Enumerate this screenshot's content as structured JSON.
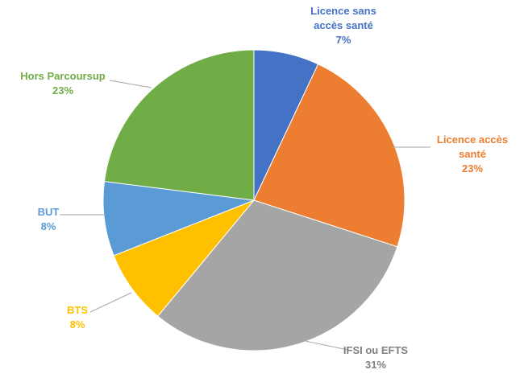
{
  "chart_data": {
    "type": "pie",
    "title": "",
    "legend": "none",
    "series": [
      {
        "values": [
          7,
          23,
          31,
          8,
          8,
          23
        ],
        "categories": [
          "Licence sans accès santé",
          "Licence accès santé",
          "IFSI ou EFTS",
          "BTS",
          "BUT",
          "Hors Parcoursup"
        ]
      }
    ],
    "slices": [
      {
        "label_lines": [
          "Licence sans",
          "accès santé"
        ],
        "value": 7,
        "percent_label": "7%",
        "color": "#4472C4",
        "label_color": "#4472C4"
      },
      {
        "label_lines": [
          "Licence accès",
          "santé"
        ],
        "value": 23,
        "percent_label": "23%",
        "color": "#ED7D31",
        "label_color": "#ED7D31"
      },
      {
        "label_lines": [
          "IFSI ou EFTS"
        ],
        "value": 31,
        "percent_label": "31%",
        "color": "#A5A5A5",
        "label_color": "#7F7F7F"
      },
      {
        "label_lines": [
          "BTS"
        ],
        "value": 8,
        "percent_label": "8%",
        "color": "#FFC000",
        "label_color": "#FFC000"
      },
      {
        "label_lines": [
          "BUT"
        ],
        "value": 8,
        "percent_label": "8%",
        "color": "#5B9BD5",
        "label_color": "#5B9BD5"
      },
      {
        "label_lines": [
          "Hors Parcoursup"
        ],
        "value": 23,
        "percent_label": "23%",
        "color": "#70AD47",
        "label_color": "#70AD47"
      }
    ],
    "start_angle_deg": 0,
    "direction": "clockwise",
    "leader_lines": true,
    "leader_color": "#A6A6A6"
  }
}
